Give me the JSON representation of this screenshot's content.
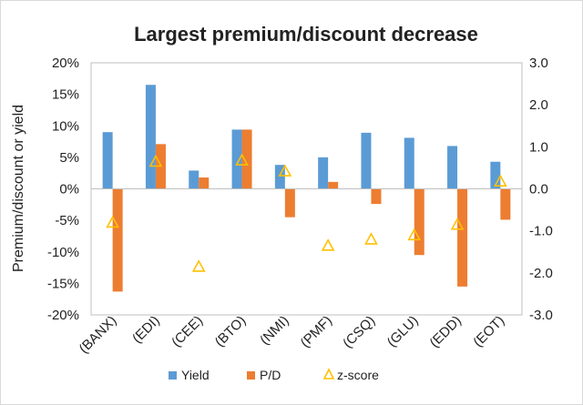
{
  "chart_data": {
    "type": "bar",
    "title": "Largest premium/discount decrease",
    "ylabel": "Premium/discount or yield",
    "categories": [
      "(BANX)",
      "(EDI)",
      "(CEE)",
      "(BTO)",
      "(NMI)",
      "(PMF)",
      "(CSQ)",
      "(GLU)",
      "(EDD)",
      "(EOT)"
    ],
    "left_axis": {
      "ylim": [
        -20,
        20
      ],
      "ticks": [
        20,
        15,
        10,
        5,
        0,
        -5,
        -10,
        -15,
        -20
      ],
      "tick_labels": [
        "20%",
        "15%",
        "10%",
        "5%",
        "0%",
        "-5%",
        "-10%",
        "-15%",
        "-20%"
      ]
    },
    "right_axis": {
      "ylim": [
        -3,
        3
      ],
      "ticks": [
        3,
        2,
        1,
        0,
        -1,
        -2,
        -3
      ],
      "tick_labels": [
        "3.0",
        "2.0",
        "1.0",
        "0.0",
        "-1.0",
        "-2.0",
        "-3.0"
      ]
    },
    "series": [
      {
        "name": "Yield",
        "kind": "bar",
        "axis": "left",
        "color": "#5b9bd5",
        "values": [
          9.0,
          16.5,
          2.9,
          9.4,
          3.8,
          5.0,
          8.9,
          8.1,
          6.8,
          4.3
        ]
      },
      {
        "name": "P/D",
        "kind": "bar",
        "axis": "left",
        "color": "#ed7d31",
        "values": [
          -16.3,
          7.1,
          1.8,
          9.4,
          -4.5,
          1.1,
          -2.4,
          -10.5,
          -15.5,
          -4.9
        ]
      },
      {
        "name": "z-score",
        "kind": "marker",
        "axis": "right",
        "color": "#ffc000",
        "values": [
          -0.8,
          0.65,
          -1.85,
          0.68,
          0.42,
          -1.35,
          -1.2,
          -1.1,
          -0.85,
          0.18
        ]
      }
    ],
    "legend": {
      "placement": "bottom"
    },
    "grid": false
  }
}
